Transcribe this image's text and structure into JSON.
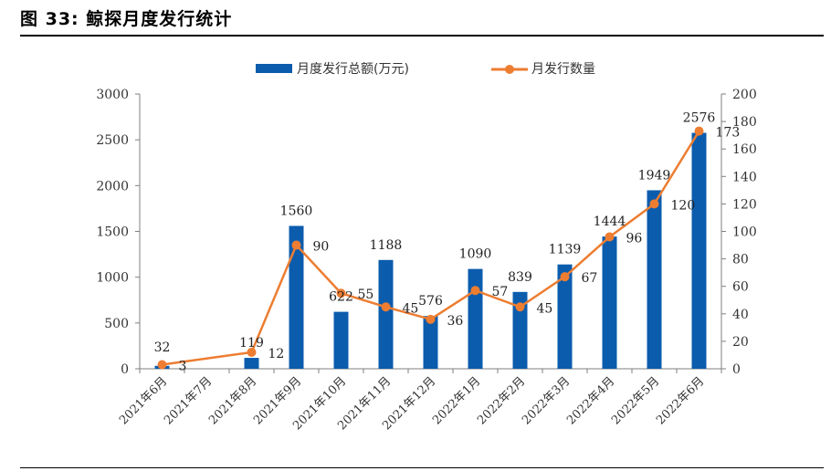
{
  "figure": {
    "title": "图 33: 鲸探月度发行统计"
  },
  "colors": {
    "bar": "#0b5cad",
    "line": "#ed7d31",
    "axis": "#7f7f7f"
  },
  "chart_data": {
    "type": "bar+line",
    "categories": [
      "2021年6月",
      "2021年7月",
      "2021年8月",
      "2021年9月",
      "2021年10月",
      "2021年11月",
      "2021年12月",
      "2022年1月",
      "2022年2月",
      "2022年3月",
      "2022年4月",
      "2022年5月",
      "2022年6月"
    ],
    "series": [
      {
        "name": "月度发行总额(万元)",
        "type": "bar",
        "axis": "left",
        "values": [
          32,
          0,
          119,
          1560,
          622,
          1188,
          576,
          1090,
          839,
          1139,
          1444,
          1949,
          2576
        ],
        "labels": [
          "32",
          "",
          "119",
          "1560",
          "622",
          "1188",
          "576",
          "1090",
          "839",
          "1139",
          "1444",
          "1949",
          "2576"
        ]
      },
      {
        "name": "月发行数量",
        "type": "line",
        "axis": "right",
        "values": [
          3,
          null,
          12,
          90,
          55,
          45,
          36,
          57,
          45,
          67,
          96,
          120,
          173
        ],
        "labels": [
          "3",
          "",
          "12",
          "90",
          "55",
          "45",
          "36",
          "57",
          "45",
          "67",
          "96",
          "120",
          "173"
        ]
      }
    ],
    "y_left": {
      "range": [
        0,
        3000
      ],
      "ticks": [
        "0",
        "500",
        "1000",
        "1500",
        "2000",
        "2500",
        "3000"
      ]
    },
    "y_right": {
      "range": [
        0,
        200
      ],
      "ticks": [
        "0",
        "20",
        "40",
        "60",
        "80",
        "100",
        "120",
        "140",
        "160",
        "180",
        "200"
      ]
    },
    "legend": {
      "position": "top-center"
    }
  }
}
